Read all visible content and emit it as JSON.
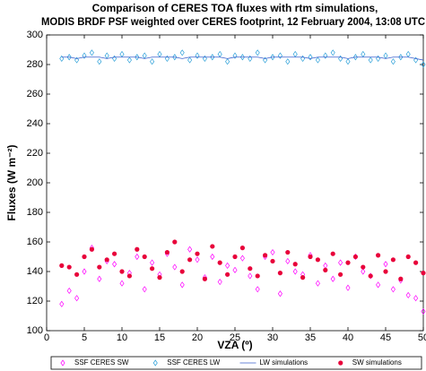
{
  "chart_data": {
    "type": "scatter",
    "title": [
      "Comparison of CERES TOA fluxes with rtm simulations,",
      "MODIS BRDF PSF weighted over CERES footprint, 12 February 2004, 13:08 UTC"
    ],
    "xlabel": "VZA (º)",
    "ylabel": "Fluxes (W m⁻²)",
    "xlim": [
      0,
      50
    ],
    "xticks": [
      0,
      5,
      10,
      15,
      20,
      25,
      30,
      35,
      40,
      45,
      50
    ],
    "ylim": [
      100,
      300
    ],
    "yticks": [
      100,
      120,
      140,
      160,
      180,
      200,
      220,
      240,
      260,
      280,
      300
    ],
    "x": [
      2,
      3,
      4,
      5,
      6,
      7,
      8,
      9,
      10,
      11,
      12,
      13,
      14,
      15,
      16,
      17,
      18,
      19,
      20,
      21,
      22,
      23,
      24,
      25,
      26,
      27,
      28,
      29,
      30,
      31,
      32,
      33,
      34,
      35,
      36,
      37,
      38,
      39,
      40,
      41,
      42,
      43,
      44,
      45,
      46,
      47,
      48,
      49,
      50
    ],
    "legend": "bottom",
    "series": [
      {
        "name": "SSF CERES SW",
        "color": "#ff00ff",
        "marker": "diamond",
        "values": [
          118,
          127,
          122,
          140,
          156,
          135,
          147,
          145,
          132,
          139,
          150,
          128,
          146,
          138,
          152,
          143,
          131,
          155,
          148,
          136,
          150,
          133,
          144,
          141,
          149,
          137,
          128,
          150,
          153,
          125,
          147,
          140,
          138,
          151,
          132,
          144,
          135,
          146,
          129,
          150,
          140,
          137,
          131,
          145,
          128,
          134,
          124,
          122,
          113
        ]
      },
      {
        "name": "SSF CERES LW",
        "color": "#2a9fd8",
        "marker": "diamond",
        "values": [
          284,
          285,
          283,
          286,
          288,
          282,
          286,
          284,
          287,
          283,
          285,
          286,
          282,
          287,
          284,
          285,
          288,
          283,
          286,
          284,
          285,
          287,
          282,
          286,
          285,
          284,
          288,
          283,
          285,
          286,
          282,
          287,
          284,
          285,
          283,
          286,
          288,
          284,
          282,
          285,
          287,
          283,
          284,
          286,
          282,
          285,
          287,
          283,
          280
        ]
      },
      {
        "name": "LW simulations",
        "color": "#3a5fcd",
        "marker": "line",
        "values": [
          285,
          285,
          284,
          285,
          285,
          285,
          284,
          285,
          285,
          285,
          285,
          284,
          285,
          285,
          285,
          285,
          284,
          285,
          285,
          285,
          285,
          285,
          284,
          285,
          285,
          285,
          285,
          284,
          285,
          285,
          285,
          285,
          285,
          284,
          285,
          285,
          285,
          285,
          284,
          285,
          285,
          285,
          285,
          284,
          285,
          285,
          285,
          284,
          283
        ]
      },
      {
        "name": "SW simulations",
        "color": "#e8003a",
        "marker": "dot",
        "values": [
          144,
          143,
          138,
          150,
          155,
          143,
          148,
          152,
          140,
          137,
          155,
          150,
          142,
          136,
          153,
          160,
          140,
          148,
          152,
          135,
          157,
          146,
          138,
          150,
          156,
          142,
          137,
          151,
          147,
          139,
          153,
          145,
          136,
          150,
          148,
          141,
          152,
          138,
          146,
          150,
          143,
          137,
          151,
          140,
          148,
          135,
          150,
          146,
          139
        ]
      }
    ]
  }
}
